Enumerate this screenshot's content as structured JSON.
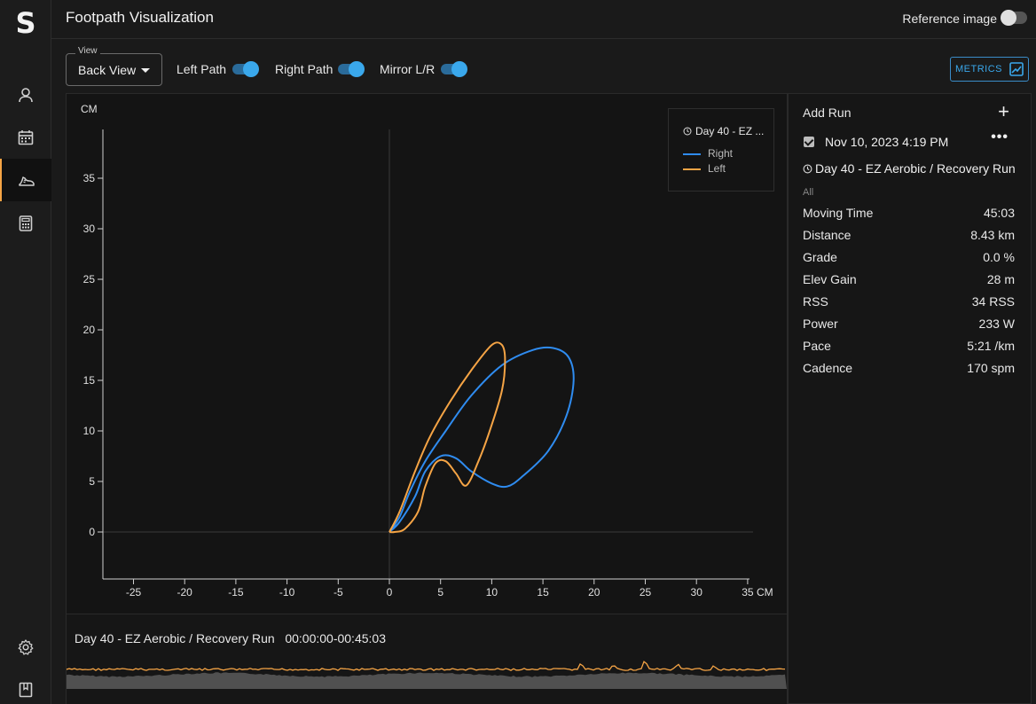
{
  "app": {
    "logo": "S",
    "title": "Footpath Visualization"
  },
  "header": {
    "reference_label": "Reference image",
    "reference_on": false
  },
  "rail": {
    "items": [
      {
        "icon": "user-icon"
      },
      {
        "icon": "calendar-icon"
      },
      {
        "icon": "shoe-icon",
        "active": true
      },
      {
        "icon": "calculator-icon"
      }
    ],
    "bottom": [
      {
        "icon": "gear-icon"
      },
      {
        "icon": "bookmark-icon"
      }
    ]
  },
  "toolbar": {
    "view_label": "View",
    "view_value": "Back View",
    "toggles": [
      {
        "label": "Left Path",
        "on": true
      },
      {
        "label": "Right Path",
        "on": true
      },
      {
        "label": "Mirror L/R",
        "on": true
      }
    ],
    "metrics_label": "METRICS"
  },
  "chart_data": {
    "type": "line",
    "xlabel": "CM",
    "ylabel": "CM",
    "xlim": [
      -28,
      35
    ],
    "ylim": [
      -4.5,
      40
    ],
    "xticks": [
      -25,
      -20,
      -15,
      -10,
      -5,
      0,
      5,
      10,
      15,
      20,
      25,
      30,
      35
    ],
    "yticks": [
      0,
      5,
      10,
      15,
      20,
      25,
      30,
      35
    ],
    "legend_title": "Day 40 - EZ ...",
    "legend_placement": "top-right",
    "series": [
      {
        "name": "Right",
        "color": "#2f8cf0",
        "points": [
          [
            0,
            0
          ],
          [
            1,
            1.5
          ],
          [
            2,
            4
          ],
          [
            3.5,
            7
          ],
          [
            5.5,
            10
          ],
          [
            8,
            13.5
          ],
          [
            11,
            16.5
          ],
          [
            14,
            18
          ],
          [
            16,
            18.2
          ],
          [
            17.5,
            17.3
          ],
          [
            18,
            15
          ],
          [
            17.3,
            11.5
          ],
          [
            15.5,
            8
          ],
          [
            13,
            5.5
          ],
          [
            11.5,
            4.5
          ],
          [
            10,
            4.8
          ],
          [
            8,
            6
          ],
          [
            6.5,
            7.3
          ],
          [
            5,
            7.5
          ],
          [
            3.5,
            6
          ],
          [
            2.5,
            3.5
          ],
          [
            1,
            1
          ],
          [
            0,
            0
          ]
        ]
      },
      {
        "name": "Left",
        "color": "#f5a445",
        "points": [
          [
            0,
            0
          ],
          [
            1,
            2
          ],
          [
            2.5,
            6
          ],
          [
            4,
            9.5
          ],
          [
            6,
            13
          ],
          [
            8,
            16
          ],
          [
            10,
            18.5
          ],
          [
            11,
            18.5
          ],
          [
            11.3,
            17
          ],
          [
            11,
            14
          ],
          [
            9.8,
            10
          ],
          [
            8.7,
            7
          ],
          [
            7.5,
            4.6
          ],
          [
            6.5,
            5.8
          ],
          [
            5.5,
            7
          ],
          [
            4.5,
            6.8
          ],
          [
            3.5,
            4.5
          ],
          [
            2.8,
            2
          ],
          [
            1.5,
            0.3
          ],
          [
            0.5,
            0
          ],
          [
            0,
            0
          ]
        ]
      }
    ]
  },
  "timeline": {
    "title": "Day 40 - EZ Aerobic / Recovery Run",
    "range": "00:00:00-00:45:03",
    "line_color": "#f5a445",
    "fill_color": "#505050"
  },
  "side": {
    "add_run_label": "Add Run",
    "run": {
      "checked": true,
      "date": "Nov 10, 2023 4:19 PM",
      "name": "Day 40 - EZ Aerobic / Recovery Run",
      "scope": "All"
    },
    "metrics": [
      {
        "label": "Moving Time",
        "value": "45:03"
      },
      {
        "label": "Distance",
        "value": "8.43 km"
      },
      {
        "label": "Grade",
        "value": "0.0 %"
      },
      {
        "label": "Elev Gain",
        "value": "28 m"
      },
      {
        "label": "RSS",
        "value": "34 RSS"
      },
      {
        "label": "Power",
        "value": "233 W"
      },
      {
        "label": "Pace",
        "value": "5:21 /km"
      },
      {
        "label": "Cadence",
        "value": "170 spm"
      }
    ]
  }
}
